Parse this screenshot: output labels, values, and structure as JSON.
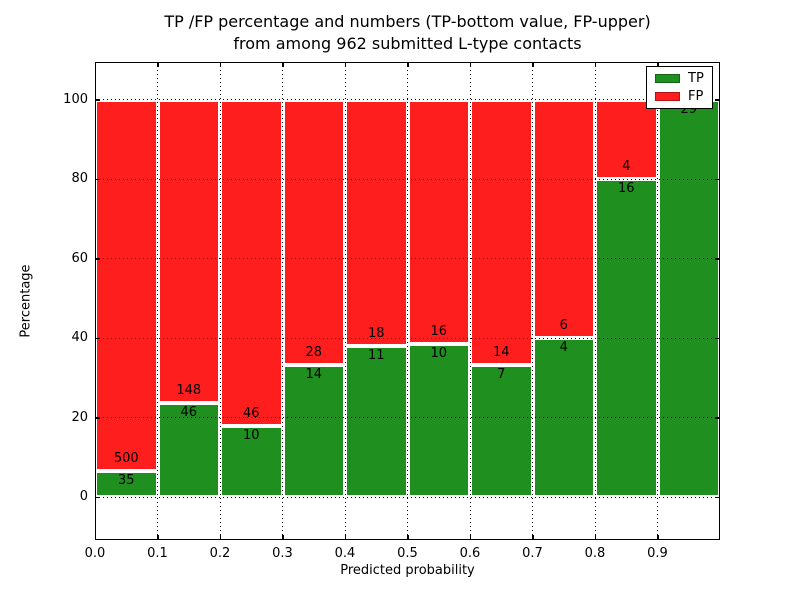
{
  "title": {
    "line1": "TP /FP percentage and numbers (TP-bottom value, FP-upper)",
    "line2": "from among 962 submitted L-type contacts"
  },
  "chart_data": {
    "type": "bar",
    "stacked": true,
    "normalized": "each bin scaled to 100%, segment heights are TP/(TP+FP) percentages",
    "title": "TP /FP percentage and numbers (TP-bottom value, FP-upper)\nfrom among 962 submitted L-type contacts",
    "xlabel": "Predicted probability",
    "ylabel": "Percentage",
    "total_contacts": 962,
    "bin_width": 0.1,
    "bin_starts": [
      0.0,
      0.1,
      0.2,
      0.3,
      0.4,
      0.5,
      0.6,
      0.7,
      0.8,
      0.9
    ],
    "series": [
      {
        "name": "TP",
        "color": "#1f8f1f",
        "values": [
          35,
          46,
          10,
          14,
          11,
          10,
          7,
          4,
          16,
          29
        ]
      },
      {
        "name": "FP",
        "color": "#ff1e1e",
        "values": [
          500,
          148,
          46,
          28,
          18,
          16,
          14,
          6,
          4,
          0
        ]
      }
    ],
    "tp_percent_per_bin": [
      6.5,
      23.7,
      17.9,
      33.3,
      37.9,
      38.5,
      33.3,
      40.0,
      80.0,
      100.0
    ],
    "x_ticks": [
      "0.0",
      "0.1",
      "0.2",
      "0.3",
      "0.4",
      "0.5",
      "0.6",
      "0.7",
      "0.8",
      "0.9"
    ],
    "y_ticks": [
      0,
      20,
      40,
      60,
      80,
      100
    ],
    "xlim": [
      0.0,
      1.0
    ],
    "ylim": [
      -11,
      110
    ],
    "grid": "dotted black, horizontal at y ticks and vertical at x ticks",
    "bar_edge_color": "#ffffff",
    "legend": {
      "position": "upper-right",
      "entries": [
        {
          "label": "TP",
          "color": "#1f8f1f"
        },
        {
          "label": "FP",
          "color": "#ff1e1e"
        }
      ]
    }
  }
}
